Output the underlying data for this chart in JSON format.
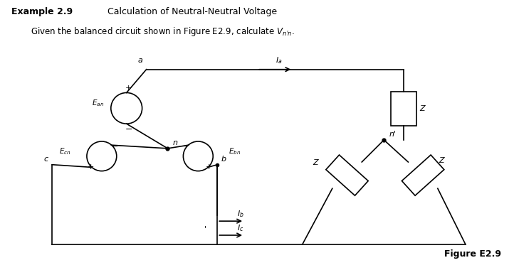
{
  "title_bold": "Example 2.9",
  "title_normal": "  Calculation of Neutral-Neutral Voltage",
  "subtitle": "Given the balanced circuit shown in Figure E2.9, calculate $V_{n'n}$.",
  "figure_label": "Figure E2.9",
  "bg_color": "#ffffff",
  "line_color": "#000000",
  "lw": 1.2
}
